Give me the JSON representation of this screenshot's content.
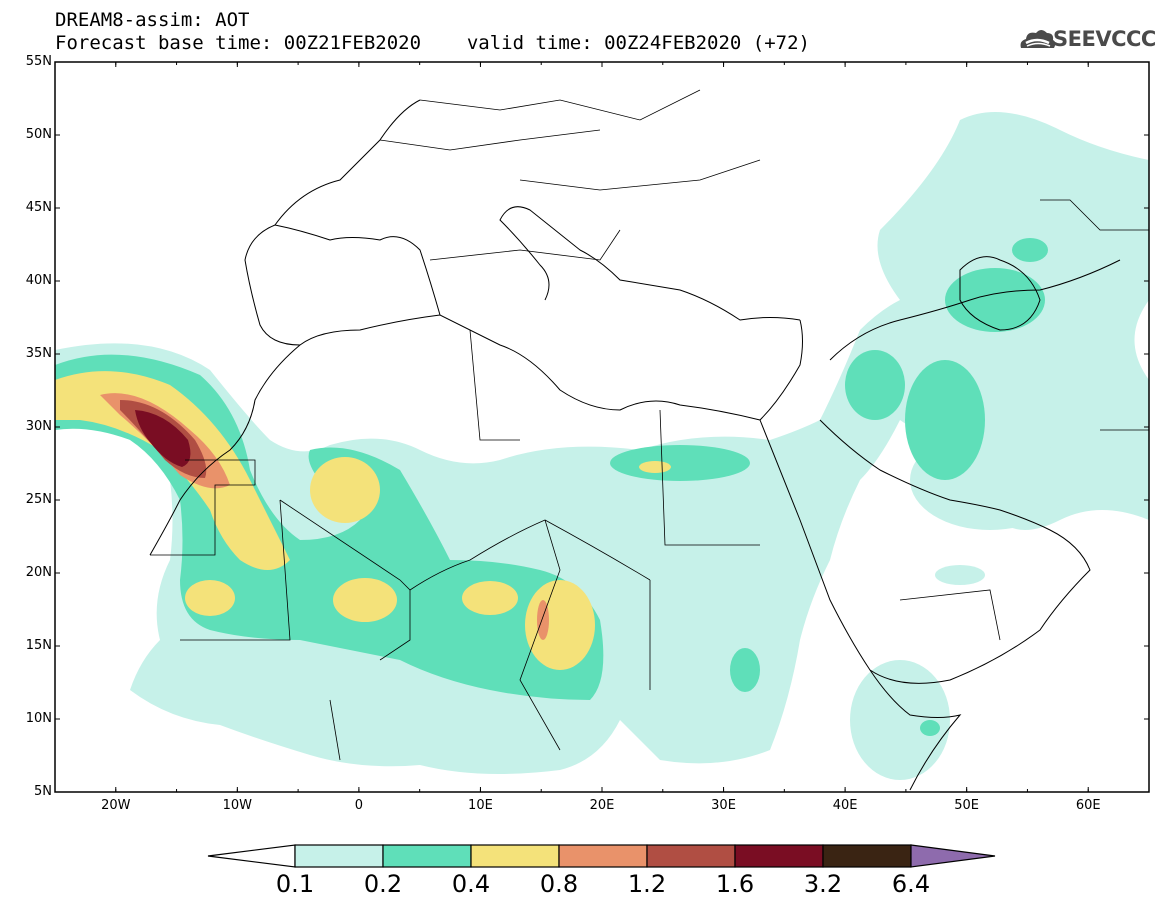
{
  "header": {
    "line1": "DREAM8-assim: AOT",
    "base_label": "Forecast base time: 00Z21FEB2020",
    "valid_label": "valid time: 00Z24FEB2020 (+72)"
  },
  "logo": {
    "text": "SEEVCCC",
    "icon": "cloud-icon"
  },
  "map": {
    "projection": "lat-lon",
    "lon_range": [
      -25,
      65
    ],
    "lat_range": [
      5,
      55
    ],
    "lat_ticks": [
      "55N",
      "50N",
      "45N",
      "40N",
      "35N",
      "30N",
      "25N",
      "20N",
      "15N",
      "10N",
      "5N"
    ],
    "lon_ticks": [
      "20W",
      "10W",
      "0",
      "10E",
      "20E",
      "30E",
      "40E",
      "50E",
      "60E"
    ]
  },
  "colorbar": {
    "labels": [
      "0.1",
      "0.2",
      "0.4",
      "0.8",
      "1.2",
      "1.6",
      "3.2",
      "6.4"
    ],
    "colors": [
      "#ffffff",
      "#c6f1e9",
      "#5fdfb9",
      "#f4e27a",
      "#e9926a",
      "#b04e43",
      "#7a0d23",
      "#3a2413",
      "#8e6bad"
    ]
  }
}
